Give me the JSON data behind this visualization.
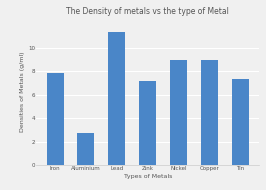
{
  "title": "The Density of metals vs the type of Metal",
  "xlabel": "Types of Metals",
  "ylabel": "Densities of Metals (g/ml)",
  "categories": [
    "Iron",
    "Aluminium",
    "Lead",
    "Zink",
    "Nickel",
    "Copper",
    "Tin"
  ],
  "values": [
    7.87,
    2.7,
    11.34,
    7.13,
    8.9,
    8.96,
    7.31
  ],
  "bar_color": "#4a86c8",
  "ylim": [
    0,
    12.5
  ],
  "yticks": [
    0,
    2,
    4,
    6,
    8,
    10
  ],
  "background_color": "#f0f0f0",
  "plot_bg_color": "#f0f0f0",
  "grid_color": "#ffffff",
  "title_fontsize": 5.5,
  "label_fontsize": 4.5,
  "tick_fontsize": 4.0,
  "bar_width": 0.55
}
